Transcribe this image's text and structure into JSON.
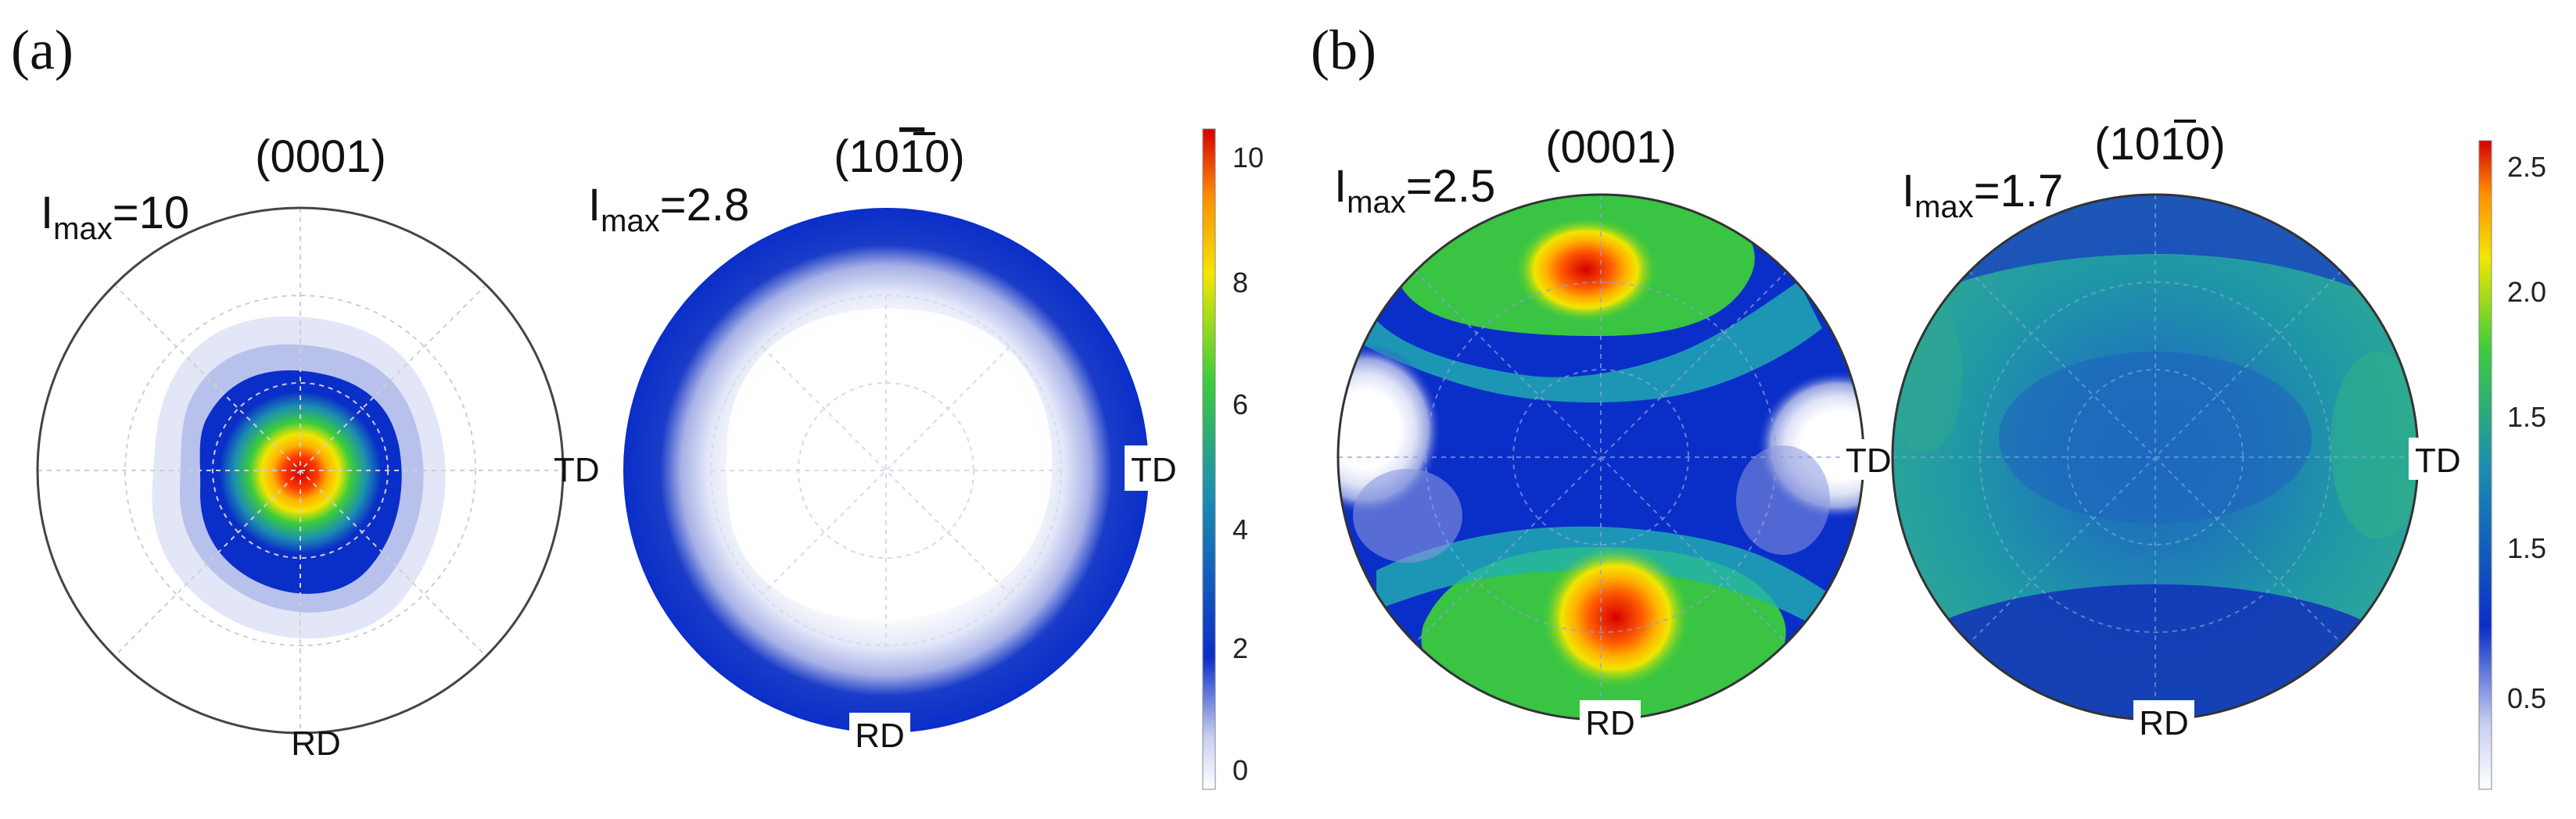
{
  "panels": {
    "a": {
      "label": "(a)",
      "left_pole": {
        "title": "(0001)",
        "imax_prefix": "I",
        "imax_sub": "max",
        "imax_value": "=10",
        "td_label": "TD",
        "rd_label": "RD"
      },
      "right_pole": {
        "title_pre": "(10",
        "title_bar": "1",
        "title_post": "0)",
        "imax_prefix": "I",
        "imax_sub": "max",
        "imax_value": "=2.8",
        "td_label": "TD",
        "rd_label": "RD"
      },
      "colorbar_ticks": [
        "10",
        "8",
        "6",
        "4",
        "2",
        "0"
      ]
    },
    "b": {
      "label": "(b)",
      "left_pole": {
        "title": "(0001)",
        "imax_prefix": "I",
        "imax_sub": "max",
        "imax_value": "=2.5",
        "td_label": "TD",
        "rd_label": "RD"
      },
      "right_pole": {
        "title_pre": "(10",
        "title_bar": "1",
        "title_post": "0)",
        "imax_prefix": "I",
        "imax_sub": "max",
        "imax_value": "=1.7",
        "td_label": "TD",
        "rd_label": "RD"
      },
      "colorbar_ticks": [
        "2.5",
        "2.0",
        "1.5",
        "1.5",
        "0.5"
      ]
    }
  },
  "colors": {
    "jet_red": "#d40000",
    "jet_orange": "#ff8c00",
    "jet_yellow": "#f2e600",
    "jet_green": "#3ccc3c",
    "jet_cyan": "#22b0b0",
    "jet_blue": "#0a2ec8",
    "pale_blue": "#c8cff0",
    "outline": "#444444"
  }
}
